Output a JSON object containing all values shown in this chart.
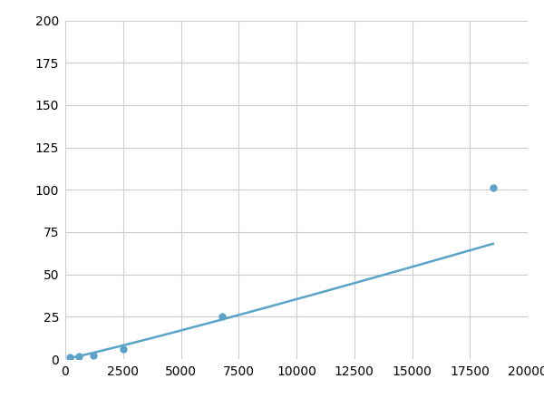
{
  "x": [
    200,
    600,
    1200,
    2500,
    6800,
    18500
  ],
  "y": [
    1,
    1.5,
    2,
    6,
    25,
    101
  ],
  "line_color": "#5BA3C9",
  "marker_color": "#5BA3C9",
  "marker_size": 6,
  "line_width": 1.8,
  "xlim": [
    0,
    20000
  ],
  "ylim": [
    0,
    200
  ],
  "xticks": [
    0,
    2500,
    5000,
    7500,
    10000,
    12500,
    15000,
    17500,
    20000
  ],
  "yticks": [
    0,
    25,
    50,
    75,
    100,
    125,
    150,
    175,
    200
  ],
  "xtick_labels": [
    "0",
    "2500",
    "5000",
    "7500",
    "10000",
    "12500",
    "15000",
    "17500",
    "20000"
  ],
  "ytick_labels": [
    "0",
    "25",
    "50",
    "75",
    "100",
    "125",
    "150",
    "175",
    "200"
  ],
  "grid_color": "#cccccc",
  "background_color": "#ffffff",
  "tick_fontsize": 10,
  "marker_x": [
    200,
    600,
    1200,
    2500,
    6800,
    18500
  ],
  "marker_y": [
    1,
    1.5,
    2,
    6,
    25,
    101
  ]
}
